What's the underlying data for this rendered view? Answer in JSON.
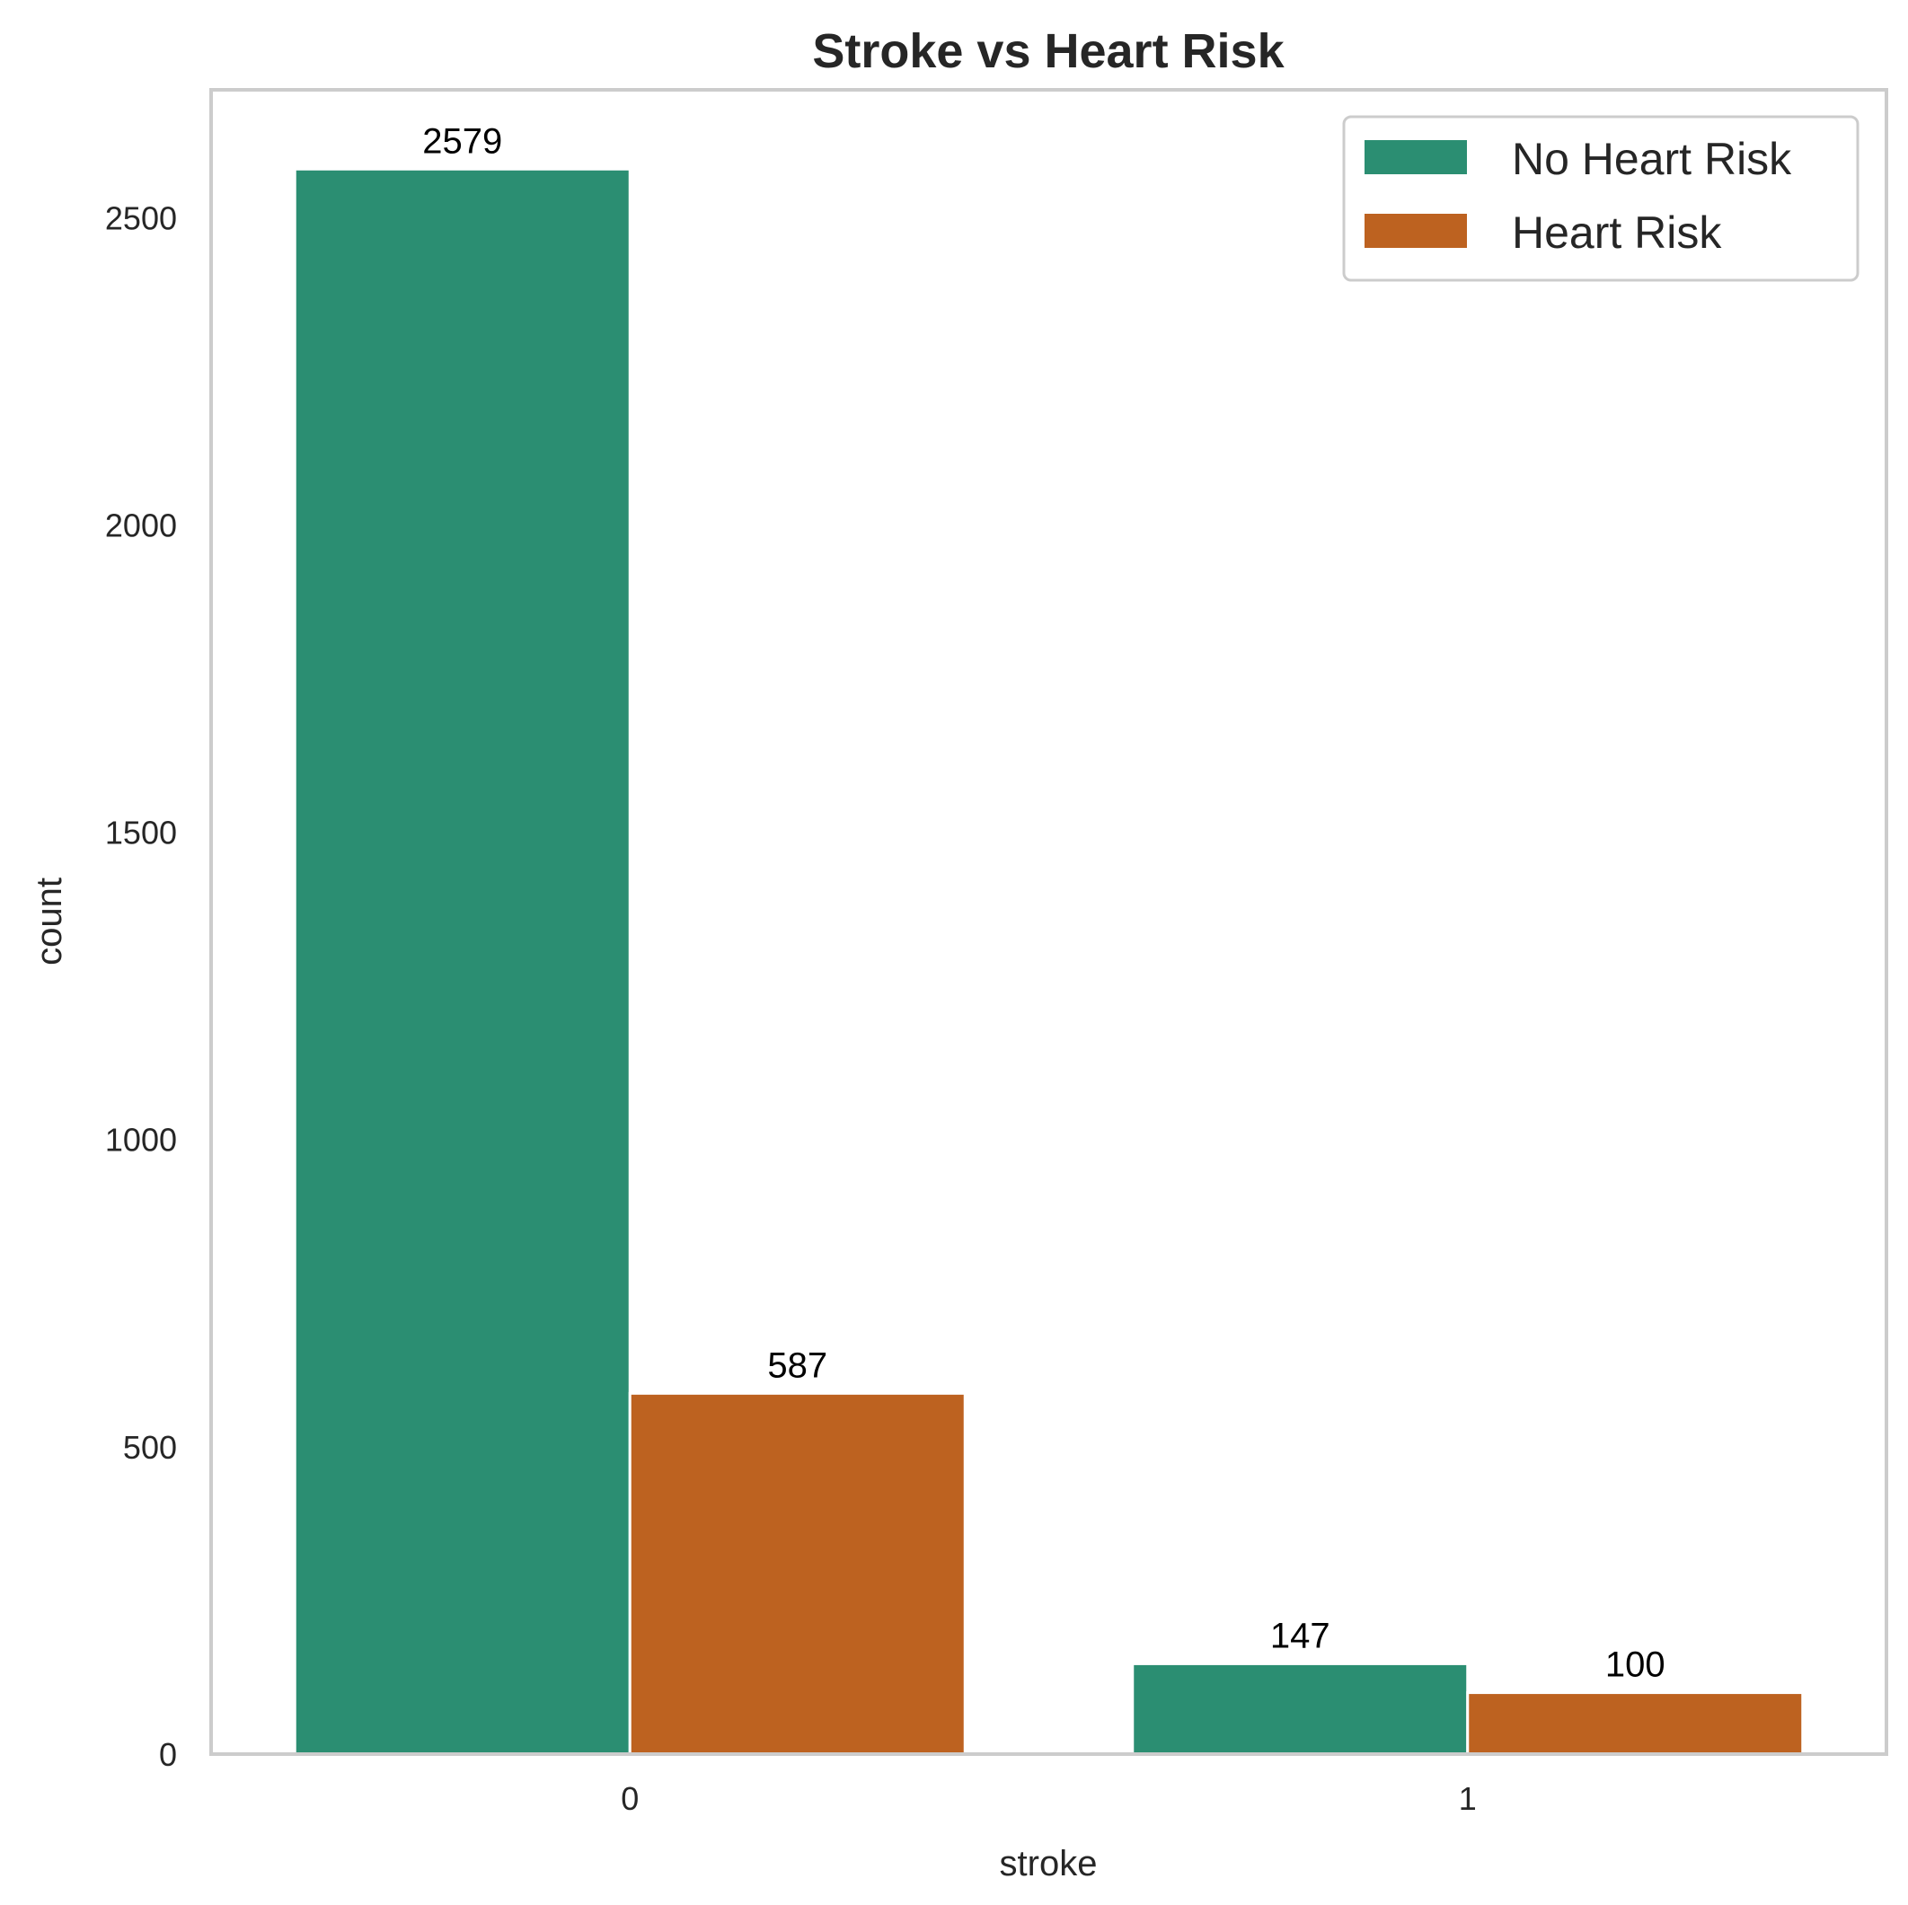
{
  "chart_data": {
    "type": "bar",
    "title": "Stroke vs Heart Risk",
    "xlabel": "stroke",
    "ylabel": "count",
    "categories": [
      "0",
      "1"
    ],
    "series": [
      {
        "name": "No Heart Risk",
        "values": [
          2579,
          147
        ],
        "color": "#2b8e72"
      },
      {
        "name": "Heart Risk",
        "values": [
          587,
          100
        ],
        "color": "#bd6220"
      }
    ],
    "ylim": [
      0,
      2708
    ],
    "yticks": [
      0,
      500,
      1000,
      1500,
      2000,
      2500
    ],
    "grid": false,
    "legend_position": "top-right",
    "frame_color": "#cccccc"
  }
}
